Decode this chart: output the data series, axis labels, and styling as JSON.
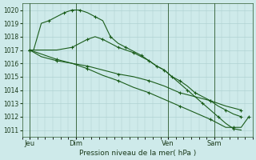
{
  "background_color": "#ceeaea",
  "grid_color": "#a8cccc",
  "line_color": "#1a5c1a",
  "xlabel": "Pression niveau de la mer( hPa )",
  "ylim": [
    1010.5,
    1020.5
  ],
  "yticks": [
    1011,
    1012,
    1013,
    1014,
    1015,
    1016,
    1017,
    1018,
    1019,
    1020
  ],
  "xtick_labels": [
    "Jeu",
    "Dim",
    "Ven",
    "Sam"
  ],
  "xtick_positions": [
    0,
    12,
    36,
    48
  ],
  "vline_positions": [
    0,
    12,
    36,
    48
  ],
  "xlim": [
    -2,
    58
  ],
  "series": [
    {
      "x": [
        0,
        1,
        3,
        5,
        7,
        9,
        11,
        13,
        15,
        17,
        19,
        21,
        23,
        25,
        27,
        29,
        31,
        33,
        35,
        37,
        39,
        41,
        43,
        45,
        47,
        49,
        51,
        53,
        55
      ],
      "y": [
        1017,
        1017,
        1019,
        1019.2,
        1019.5,
        1019.8,
        1020,
        1020,
        1019.8,
        1019.5,
        1019.2,
        1018,
        1017.5,
        1017.2,
        1016.9,
        1016.6,
        1016.2,
        1015.8,
        1015.5,
        1015.0,
        1014.5,
        1014.0,
        1013.5,
        1013.0,
        1012.5,
        1012.0,
        1011.5,
        1011.1,
        1011.0
      ],
      "marker_x": [
        0,
        5,
        9,
        11,
        13,
        17,
        21,
        25,
        29,
        33,
        37,
        41,
        45,
        49,
        53
      ],
      "marker_y": [
        1017,
        1019.2,
        1019.8,
        1020,
        1020,
        1019.5,
        1018,
        1017.2,
        1016.6,
        1015.8,
        1015.0,
        1014.0,
        1013.0,
        1012.0,
        1011.1
      ]
    },
    {
      "x": [
        0,
        3,
        7,
        11,
        13,
        15,
        17,
        19,
        21,
        23,
        25,
        27,
        29,
        31,
        33,
        35,
        37,
        39,
        41,
        43,
        45,
        47,
        49,
        51,
        53,
        55
      ],
      "y": [
        1017,
        1017,
        1017,
        1017.2,
        1017.5,
        1017.8,
        1018,
        1017.8,
        1017.5,
        1017.2,
        1017.0,
        1016.8,
        1016.5,
        1016.2,
        1015.8,
        1015.5,
        1015.0,
        1014.7,
        1014.3,
        1013.8,
        1013.5,
        1013.2,
        1012.8,
        1012.5,
        1012.2,
        1012.0
      ],
      "marker_x": [
        0,
        11,
        15,
        19,
        23,
        27,
        31,
        35,
        39,
        43,
        47,
        51,
        55
      ],
      "marker_y": [
        1017,
        1017.2,
        1017.8,
        1017.8,
        1017.2,
        1016.8,
        1016.2,
        1015.5,
        1014.7,
        1013.8,
        1013.2,
        1012.5,
        1012.0
      ]
    },
    {
      "x": [
        0,
        3,
        7,
        11,
        15,
        19,
        23,
        27,
        31,
        35,
        39,
        43,
        47,
        51,
        55
      ],
      "y": [
        1017,
        1016.5,
        1016.2,
        1016.0,
        1015.8,
        1015.5,
        1015.2,
        1015.0,
        1014.7,
        1014.3,
        1013.8,
        1013.5,
        1013.2,
        1012.8,
        1012.5
      ],
      "marker_x": [
        0,
        7,
        15,
        23,
        31,
        39,
        47,
        55
      ],
      "marker_y": [
        1017,
        1016.2,
        1015.8,
        1015.2,
        1014.7,
        1013.8,
        1013.2,
        1012.5
      ]
    },
    {
      "x": [
        0,
        3,
        7,
        11,
        15,
        19,
        23,
        27,
        31,
        35,
        39,
        43,
        47,
        49,
        51,
        53,
        55,
        57
      ],
      "y": [
        1017,
        1016.7,
        1016.3,
        1016.0,
        1015.6,
        1015.1,
        1014.7,
        1014.2,
        1013.8,
        1013.3,
        1012.8,
        1012.3,
        1011.8,
        1011.5,
        1011.2,
        1011.2,
        1011.2,
        1012.0
      ],
      "marker_x": [
        0,
        7,
        15,
        23,
        31,
        39,
        47,
        53,
        57
      ],
      "marker_y": [
        1017,
        1016.3,
        1015.6,
        1014.7,
        1013.8,
        1012.8,
        1011.8,
        1011.2,
        1012.0
      ]
    }
  ]
}
